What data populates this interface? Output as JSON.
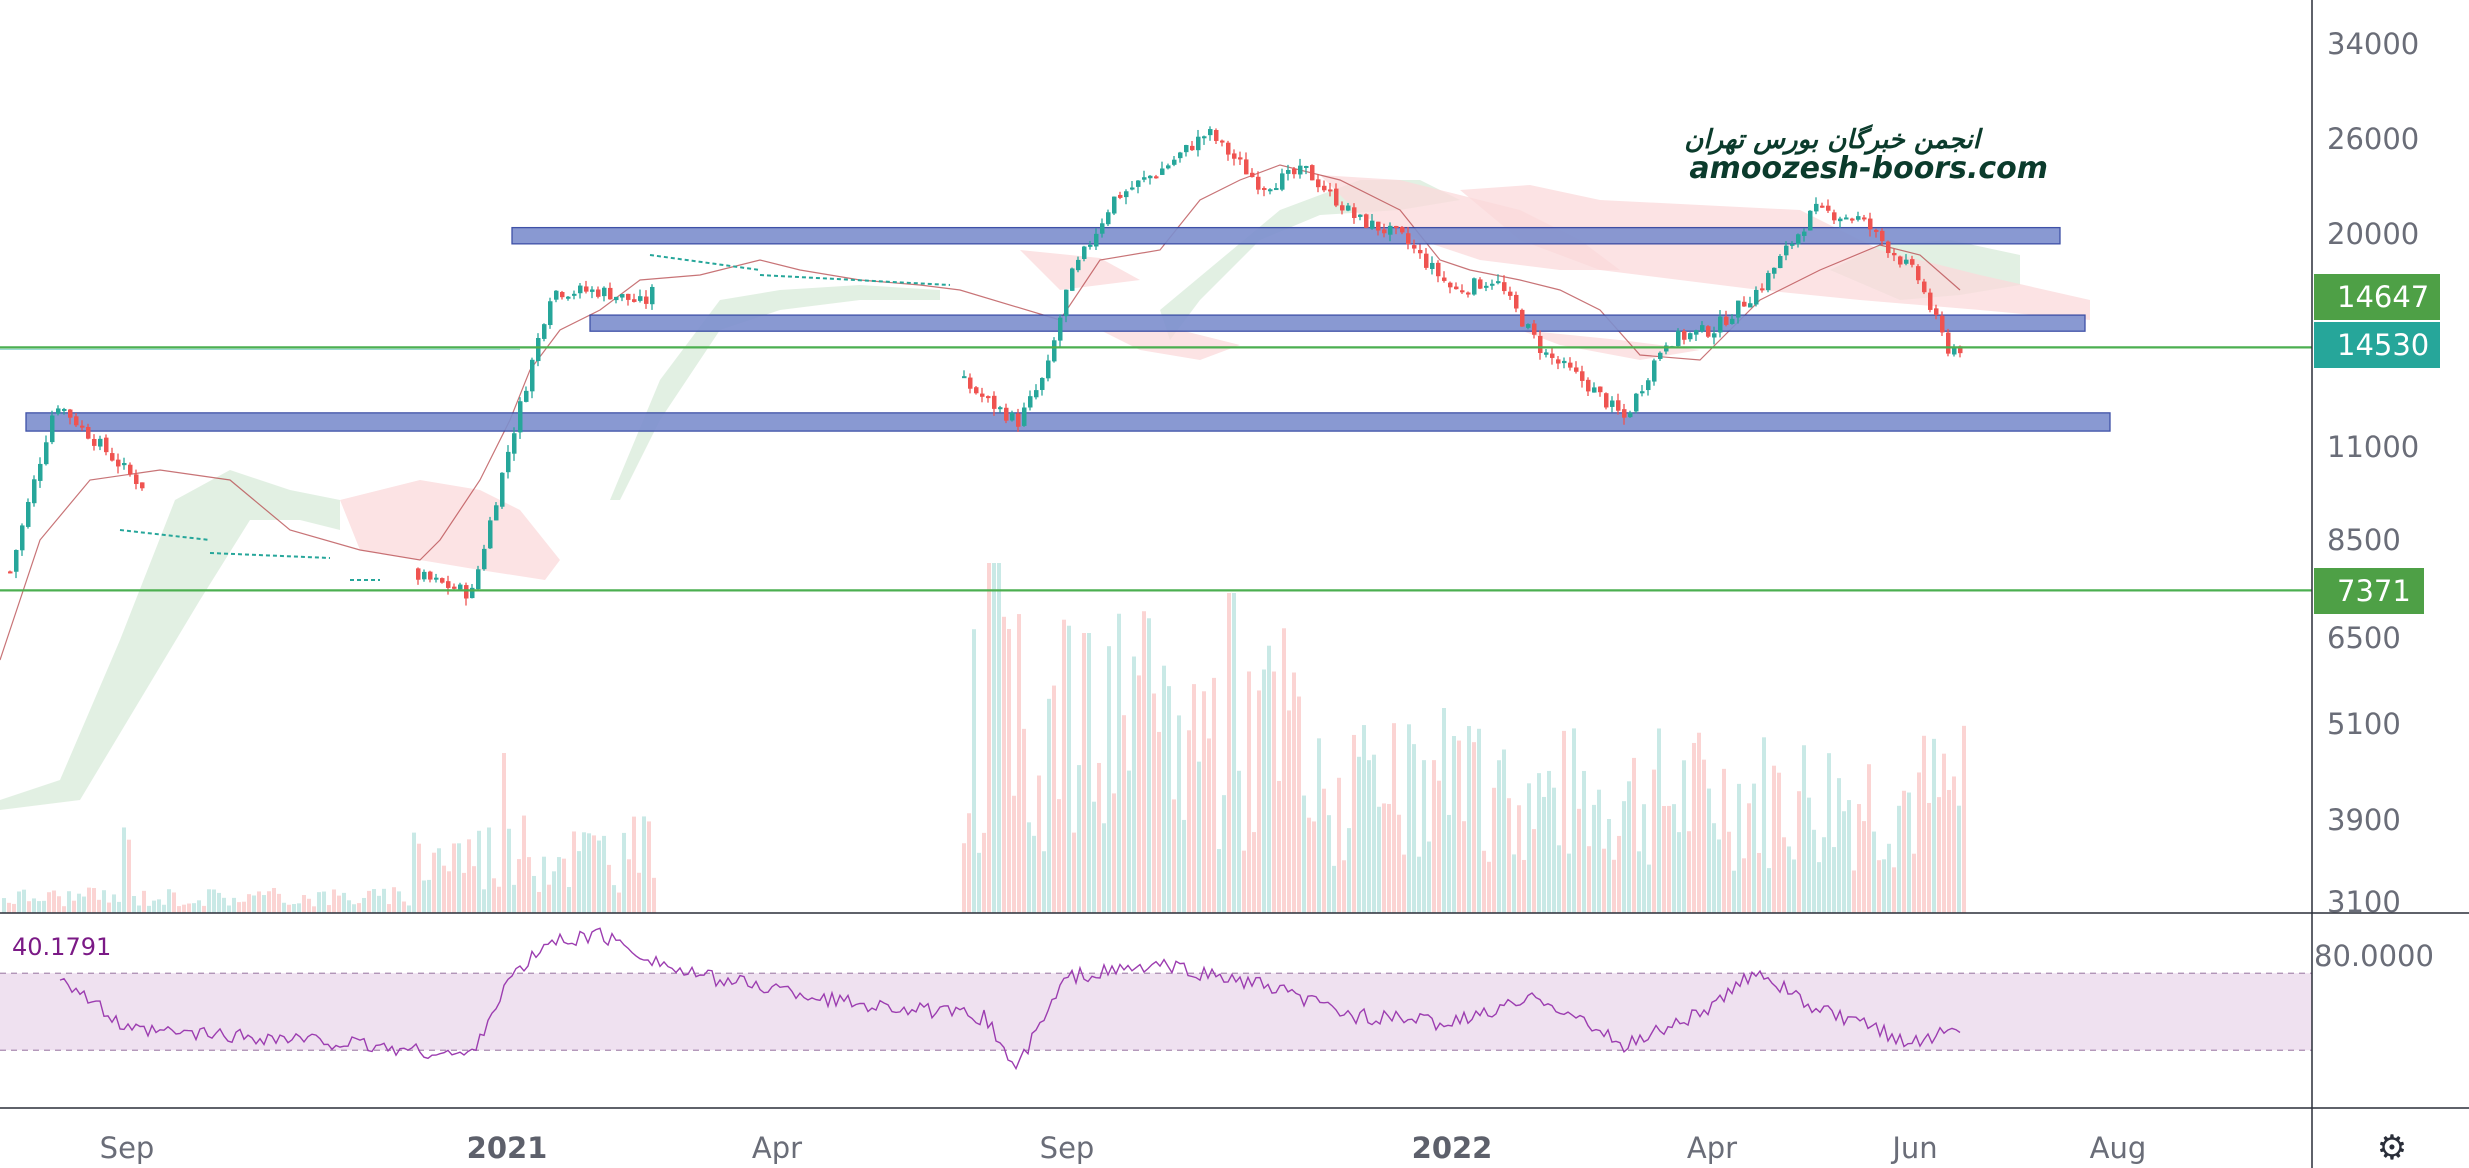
{
  "watermark": {
    "line1": "انجمن خبرگان بورس تهران",
    "line2": "amoozesh-boors.com"
  },
  "price_axis": {
    "labels": [
      "34000",
      "26000",
      "20000",
      "14647",
      "14530",
      "11000",
      "8500",
      "7371",
      "6500",
      "5100",
      "3900",
      "3100"
    ],
    "badges": [
      {
        "value": "14647",
        "color": "#4ea046"
      },
      {
        "value": "14530",
        "color": "#26a69a"
      },
      {
        "value": "7371",
        "color": "#4ea046"
      }
    ]
  },
  "time_axis": {
    "labels": [
      "Sep",
      "2021",
      "Apr",
      "Sep",
      "2022",
      "Apr",
      "Jun",
      "Aug"
    ]
  },
  "rsi": {
    "current_value": "40.1791",
    "upper_label": "80.0000",
    "band_color": "#efe1f0",
    "line_color": "#9c3db0"
  },
  "colors": {
    "up": "#26a69a",
    "down": "#ef5350",
    "zone": "#7d8fce",
    "hline": "#4caf50",
    "cloud_bull": "#d8ebd9",
    "cloud_bear": "#fbd9db"
  },
  "settings_icon": "gear-icon",
  "chart_data": [
    {
      "type": "candlestick",
      "title": "",
      "y_scale": "log",
      "y_ticks": [
        3100,
        3900,
        5100,
        6500,
        8500,
        11000,
        20000,
        26000,
        34000
      ],
      "x_ticks": [
        "Sep",
        "2021",
        "Apr",
        "Sep",
        "2022",
        "Apr",
        "Jun",
        "Aug"
      ],
      "x": [
        "2020-07-15",
        "2020-08-01",
        "2020-09-01",
        "2020-10-01",
        "2020-11-01",
        "2020-12-01",
        "2020-12-20",
        "2021-01-01",
        "2021-01-15",
        "2021-02-01",
        "2021-02-15",
        "2021-03-01",
        "2021-04-01",
        "2021-05-01",
        "2021-07-20",
        "2021-08-05",
        "2021-08-20",
        "2021-09-01",
        "2021-09-15",
        "2021-10-01",
        "2021-10-15",
        "2021-11-01",
        "2021-11-15",
        "2021-12-01",
        "2021-12-15",
        "2022-01-01",
        "2022-01-15",
        "2022-02-01",
        "2022-02-15",
        "2022-03-01",
        "2022-03-15",
        "2022-04-01",
        "2022-04-15",
        "2022-05-01",
        "2022-05-15",
        "2022-06-01",
        "2022-06-10"
      ],
      "close": [
        8200,
        12500,
        10200,
        8200,
        8000,
        7700,
        7300,
        11000,
        17000,
        17000,
        16400,
        19500,
        18400,
        17400,
        12500,
        11800,
        13500,
        17500,
        22000,
        24000,
        26500,
        22800,
        23800,
        20800,
        19800,
        17000,
        17600,
        14300,
        13200,
        11900,
        14800,
        15300,
        17200,
        21300,
        20800,
        17700,
        14500
      ],
      "zones": [
        {
          "low": 19400,
          "high": 20300
        },
        {
          "low": 15200,
          "high": 15900
        },
        {
          "low": 11500,
          "high": 12100
        }
      ],
      "horizontal_lines": [
        14530,
        7371
      ],
      "last_price": 14530
    },
    {
      "type": "line",
      "title": "RSI",
      "ylim": [
        0,
        100
      ],
      "band": [
        30,
        70
      ],
      "y_ticks": [
        80
      ],
      "current_value": 40.1791,
      "x": [
        "2020-07-15",
        "2020-08-01",
        "2020-09-01",
        "2020-10-01",
        "2020-11-01",
        "2020-12-01",
        "2020-12-20",
        "2021-01-01",
        "2021-01-15",
        "2021-02-01",
        "2021-03-01",
        "2021-04-01",
        "2021-05-01",
        "2021-07-20",
        "2021-08-05",
        "2021-09-01",
        "2021-10-01",
        "2021-11-01",
        "2021-12-01",
        "2022-01-01",
        "2022-02-01",
        "2022-03-01",
        "2022-04-01",
        "2022-04-15",
        "2022-05-01",
        "2022-06-01",
        "2022-06-10"
      ],
      "values": [
        68,
        72,
        40,
        38,
        35,
        30,
        27,
        65,
        86,
        90,
        70,
        62,
        56,
        47,
        20,
        68,
        74,
        64,
        48,
        44,
        58,
        32,
        52,
        72,
        52,
        34,
        40
      ]
    }
  ]
}
